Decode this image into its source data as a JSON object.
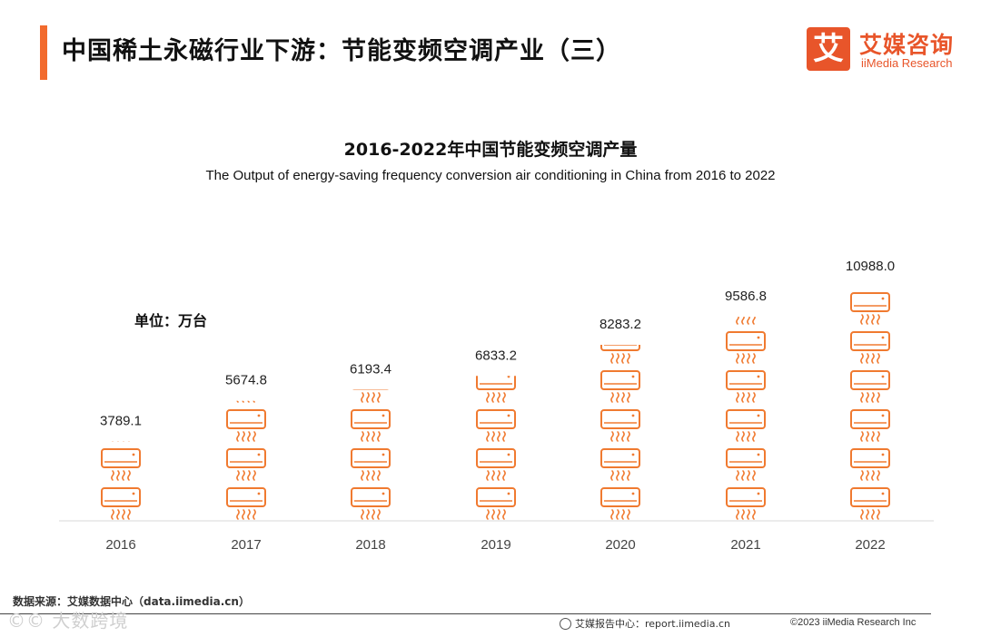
{
  "header": {
    "title": "中国稀土永磁行业下游：节能变频空调产业（三）",
    "logo_mark": "艾",
    "logo_cn": "艾媒咨询",
    "logo_en": "iiMedia Research"
  },
  "unit_label": "单位：万台",
  "chart_data": {
    "type": "bar",
    "title": "2016-2022年中国节能变频空调产量",
    "subtitle": "The Output of energy-saving frequency conversion air conditioning in China from 2016 to 2022",
    "categories": [
      "2016",
      "2017",
      "2018",
      "2019",
      "2020",
      "2021",
      "2022"
    ],
    "values": [
      3789.1,
      5674.8,
      6193.4,
      6833.2,
      8283.2,
      9586.8,
      10988.0
    ],
    "value_labels": [
      "3789.1",
      "5674.8",
      "6193.4",
      "6833.2",
      "8283.2",
      "9586.8",
      "10988.0"
    ],
    "ylim": [
      0,
      11300
    ],
    "grid": false,
    "mark": "air-conditioner-icon"
  },
  "footer": {
    "source": "数据来源：艾媒数据中心（data.iimedia.cn）",
    "report": "艾媒报告中心：report.iimedia.cn",
    "copyright": "©2023  iiMedia Research  Inc",
    "watermark": "©© 大数跨境"
  },
  "colors": {
    "accent": "#f26b2e",
    "bar": "#f07a30",
    "axis": "#d9d9d9"
  }
}
